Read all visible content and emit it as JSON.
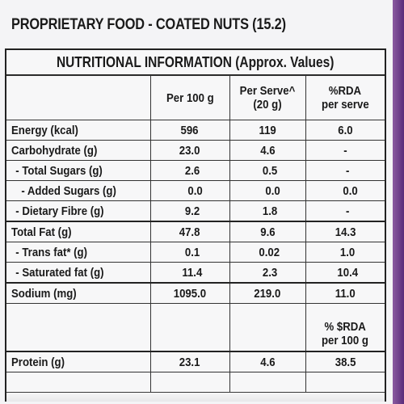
{
  "heading": "PROPRIETARY FOOD - COATED NUTS (15.2)",
  "table_title": "NUTRITIONAL INFORMATION (Approx. Values)",
  "columns": {
    "per100": "Per 100 g",
    "serve_line1": "Per Serve^",
    "serve_line2": "(20 g)",
    "rda_line1": "%RDA",
    "rda_line2": "per serve"
  },
  "rows": [
    {
      "label": "Energy (kcal)",
      "per100": "596",
      "serve": "119",
      "rda": "6.0"
    },
    {
      "label": "Carbohydrate (g)",
      "per100": "23.0",
      "serve": "4.6",
      "rda": "-"
    },
    {
      "label": "- Total Sugars (g)",
      "per100": "2.6",
      "serve": "0.5",
      "rda": "-"
    },
    {
      "label": "- Added Sugars (g)",
      "per100": "0.0",
      "serve": "0.0",
      "rda": "0.0"
    },
    {
      "label": "- Dietary Fibre (g)",
      "per100": "9.2",
      "serve": "1.8",
      "rda": "-"
    },
    {
      "label": "Total Fat (g)",
      "per100": "47.8",
      "serve": "9.6",
      "rda": "14.3"
    },
    {
      "label": "- Trans fat* (g)",
      "per100": "0.1",
      "serve": "0.02",
      "rda": "1.0"
    },
    {
      "label": "- Saturated fat (g)",
      "per100": "11.4",
      "serve": "2.3",
      "rda": "10.4"
    },
    {
      "label": "Sodium (mg)",
      "per100": "1095.0",
      "serve": "219.0",
      "rda": "11.0"
    }
  ],
  "rda100": {
    "line1": "% $RDA",
    "line2": "per 100 g"
  },
  "protein": {
    "label": "Protein (g)",
    "per100": "23.1",
    "serve": "4.6",
    "rda": "38.5"
  }
}
